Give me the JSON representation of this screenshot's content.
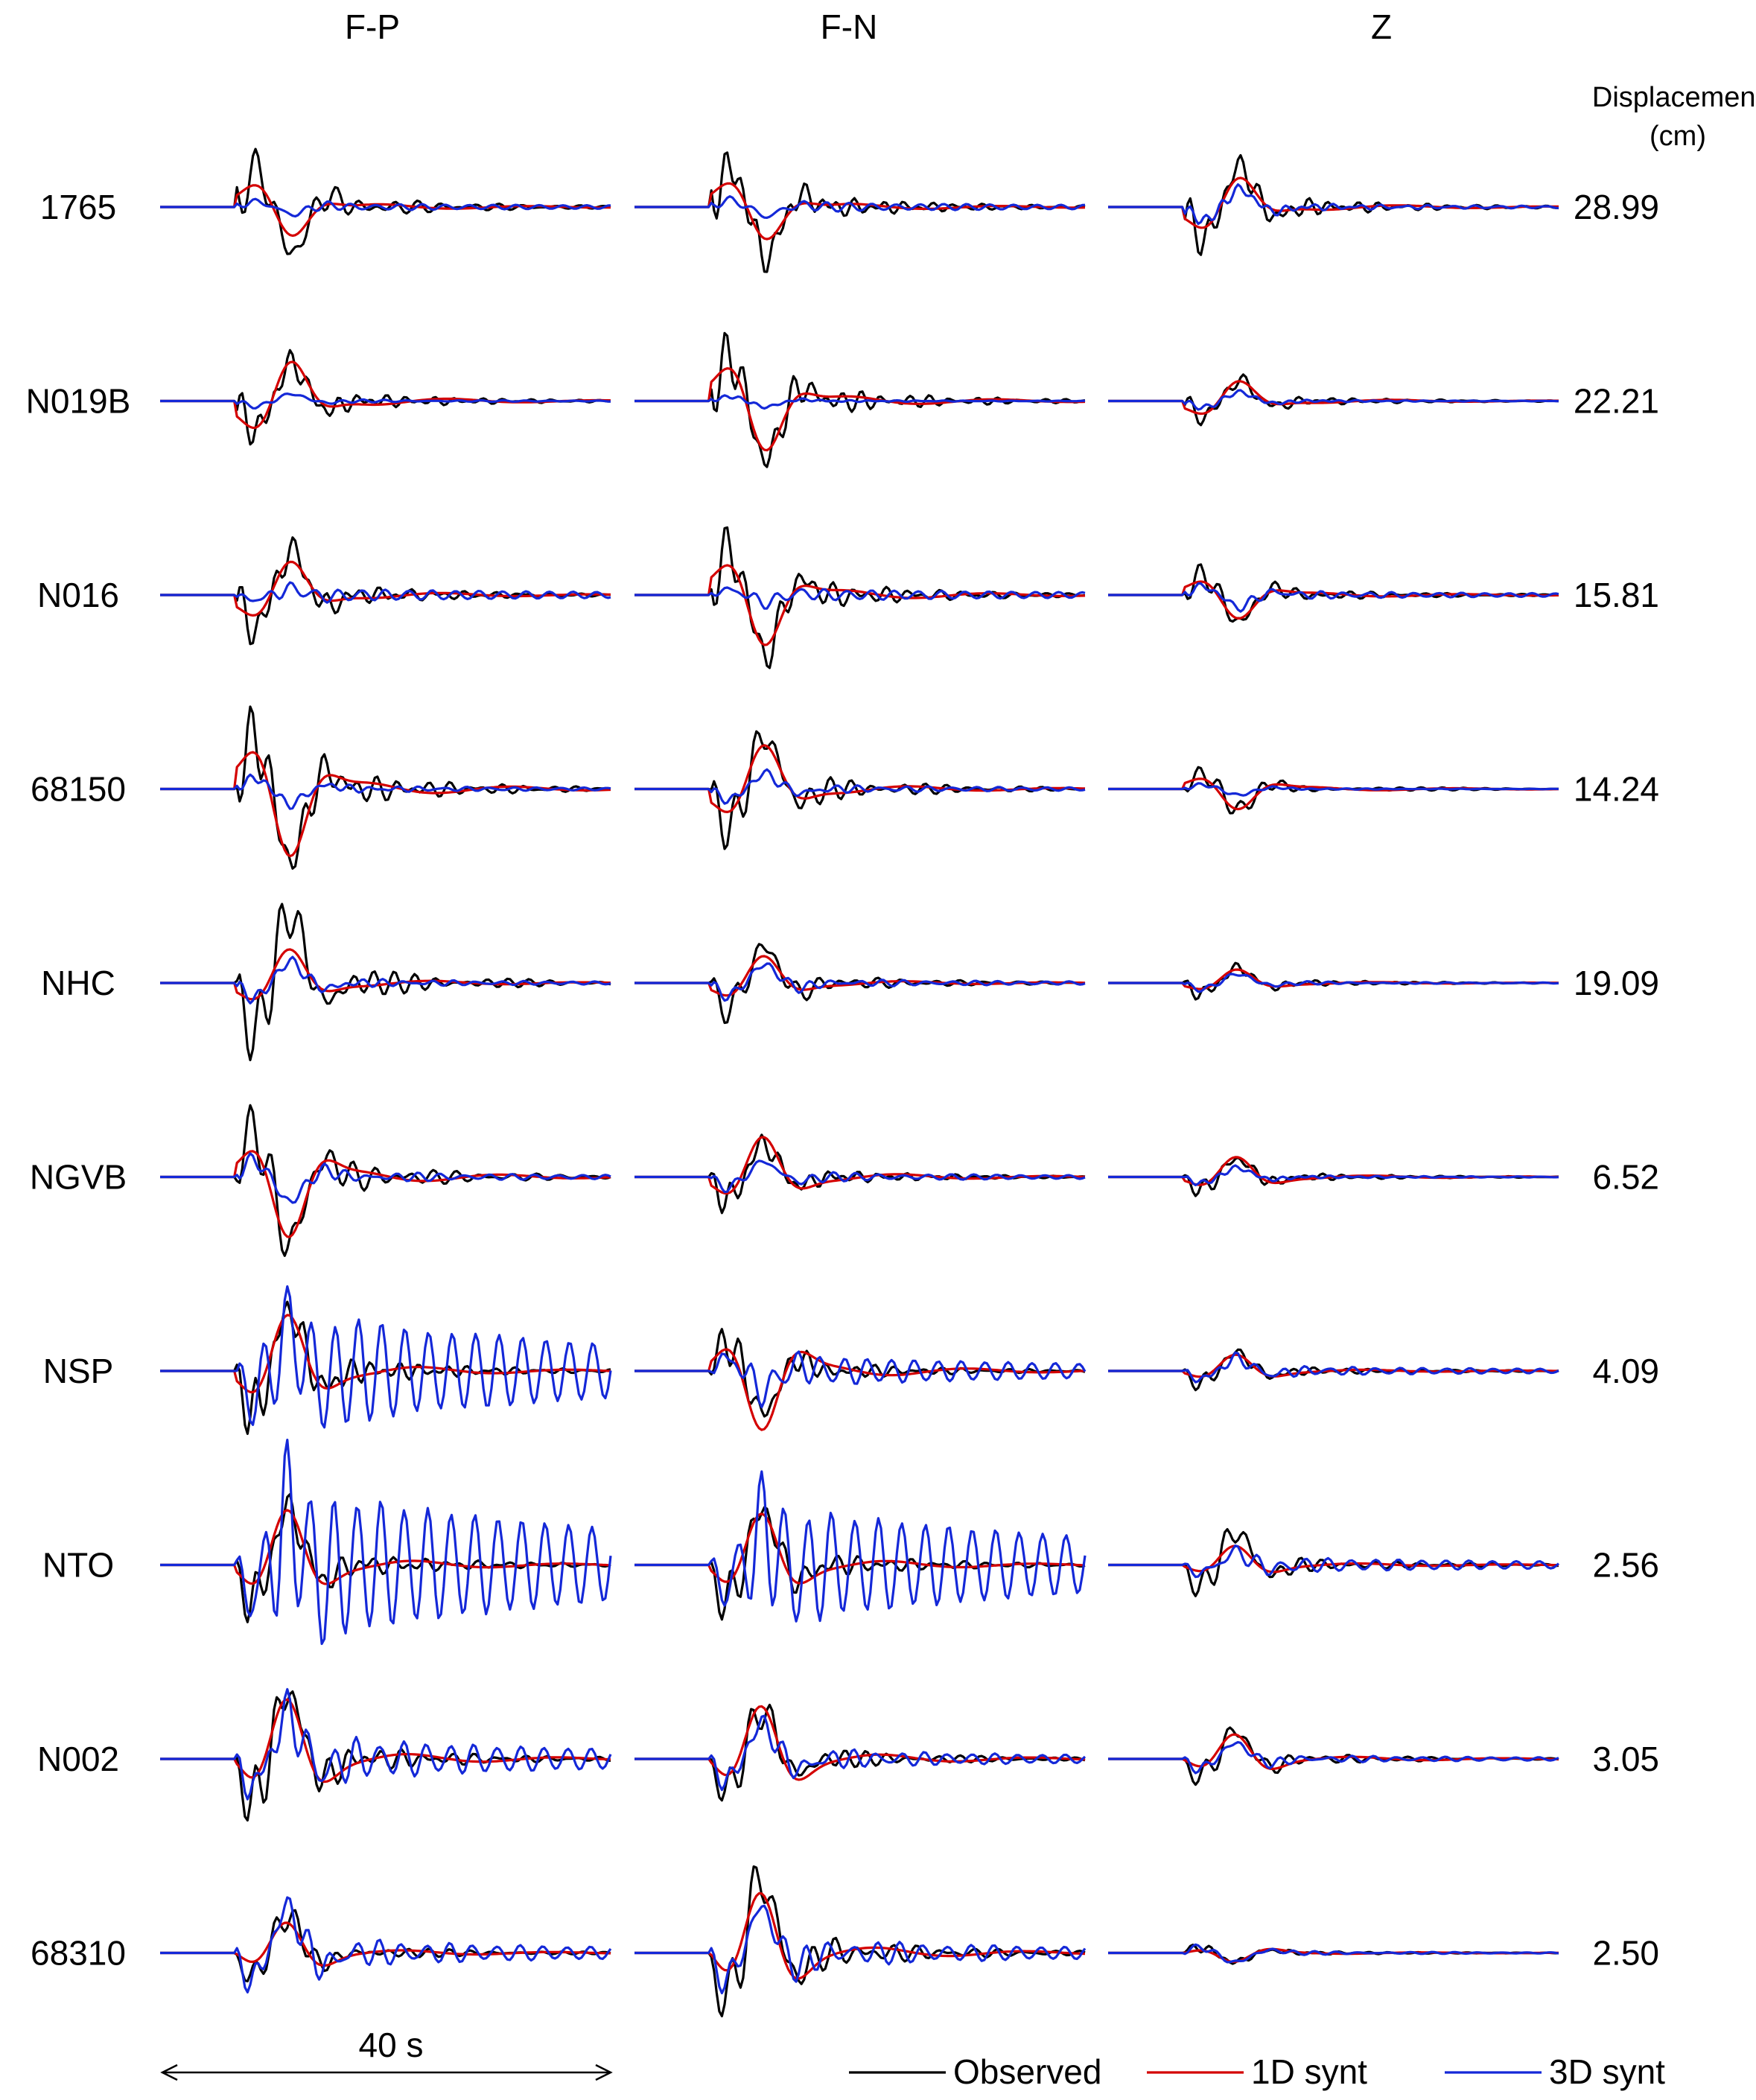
{
  "chart_data": {
    "type": "line",
    "columns": [
      "F-P",
      "F-N",
      "Z"
    ],
    "amplitude_header": [
      "Displacement",
      "(cm)"
    ],
    "scale_bar_label": "40 s",
    "scale_bar_seconds": 40,
    "legend": [
      {
        "label": "Observed",
        "color": "#000000"
      },
      {
        "label": "1D synt",
        "color": "#d40000"
      },
      {
        "label": "3D synt",
        "color": "#1428d8"
      }
    ],
    "series_colors": {
      "observed": "#000000",
      "synt_1d": "#d40000",
      "synt_3d": "#1428d8"
    },
    "stations": [
      {
        "name": "1765",
        "peak_displacement": "28.99",
        "wave_amp": [
          [
            0.8,
            0.45,
            0.12
          ],
          [
            0.85,
            0.5,
            0.15
          ],
          [
            0.7,
            0.45,
            0.3
          ]
        ],
        "ringing_3d": [
          0.6,
          0.6,
          0.15
        ],
        "polarity": [
          1,
          1,
          -1
        ]
      },
      {
        "name": "N019B",
        "peak_displacement": "22.21",
        "wave_amp": [
          [
            0.65,
            0.6,
            0.12
          ],
          [
            1.0,
            0.75,
            0.1
          ],
          [
            0.35,
            0.3,
            0.15
          ]
        ],
        "ringing_3d": [
          0.15,
          0.1,
          0.05
        ],
        "polarity": [
          -1,
          1,
          -1
        ]
      },
      {
        "name": "N016",
        "peak_displacement": "15.81",
        "wave_amp": [
          [
            0.75,
            0.5,
            0.1
          ],
          [
            1.0,
            0.75,
            0.12
          ],
          [
            0.45,
            0.35,
            0.2
          ]
        ],
        "ringing_3d": [
          1.3,
          1.0,
          0.35
        ],
        "polarity": [
          -1,
          1,
          1
        ]
      },
      {
        "name": "68150",
        "peak_displacement": "14.24",
        "wave_amp": [
          [
            1.2,
            1.0,
            0.25
          ],
          [
            0.9,
            0.65,
            0.25
          ],
          [
            0.35,
            0.3,
            0.1
          ]
        ],
        "ringing_3d": [
          0.2,
          0.25,
          0.05
        ],
        "polarity": [
          1,
          -1,
          1
        ]
      },
      {
        "name": "NHC",
        "peak_displacement": "19.09",
        "wave_amp": [
          [
            1.2,
            0.5,
            0.35
          ],
          [
            0.6,
            0.4,
            0.3
          ],
          [
            0.25,
            0.2,
            0.15
          ]
        ],
        "ringing_3d": [
          0.15,
          0.2,
          0.1
        ],
        "polarity": [
          -1,
          -1,
          -1
        ]
      },
      {
        "name": "NGVB",
        "peak_displacement": "6.52",
        "wave_amp": [
          [
            1.1,
            0.9,
            0.4
          ],
          [
            0.55,
            0.6,
            0.25
          ],
          [
            0.3,
            0.3,
            0.15
          ]
        ],
        "ringing_3d": [
          0.2,
          0.3,
          0.1
        ],
        "polarity": [
          1,
          -1,
          -1
        ]
      },
      {
        "name": "NSP",
        "peak_displacement": "4.09",
        "wave_amp": [
          [
            1.0,
            0.85,
            0.6
          ],
          [
            0.7,
            0.9,
            0.3
          ],
          [
            0.3,
            0.25,
            0.2
          ]
        ],
        "ringing_3d": [
          2.0,
          1.05,
          0.45
        ],
        "polarity": [
          -1,
          1,
          -1
        ]
      },
      {
        "name": "NTO",
        "peak_displacement": "2.56",
        "wave_amp": [
          [
            0.9,
            0.85,
            0.7
          ],
          [
            0.9,
            0.8,
            0.5
          ],
          [
            0.55,
            0.3,
            0.2
          ]
        ],
        "ringing_3d": [
          2.3,
          2.5,
          0.75
        ],
        "polarity": [
          -1,
          -1,
          -1
        ]
      },
      {
        "name": "N002",
        "peak_displacement": "3.05",
        "wave_amp": [
          [
            1.1,
            0.95,
            0.7
          ],
          [
            0.8,
            0.85,
            0.55
          ],
          [
            0.45,
            0.4,
            0.25
          ]
        ],
        "ringing_3d": [
          0.6,
          0.3,
          0.25
        ],
        "polarity": [
          -1,
          -1,
          -1
        ]
      },
      {
        "name": "68310",
        "peak_displacement": "2.50",
        "wave_amp": [
          [
            0.6,
            0.5,
            0.7
          ],
          [
            1.2,
            1.0,
            0.7
          ],
          [
            0.15,
            0.15,
            0.15
          ]
        ],
        "ringing_3d": [
          0.35,
          0.35,
          0.15
        ],
        "polarity": [
          -1,
          -1,
          1
        ]
      }
    ]
  }
}
